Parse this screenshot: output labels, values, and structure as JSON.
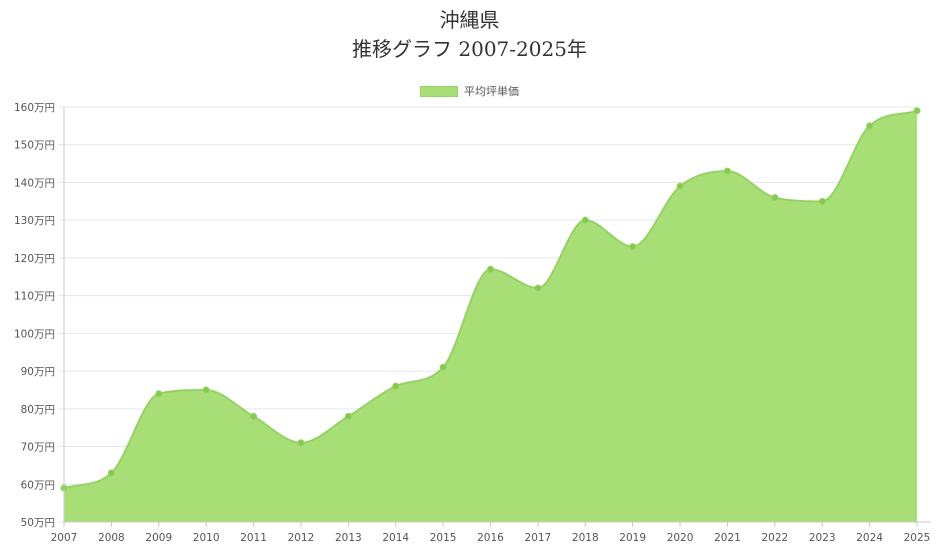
{
  "chart_data": {
    "type": "area",
    "title_lines": [
      "沖縄県",
      "推移グラフ 2007-2025年"
    ],
    "xlabel": "",
    "ylabel": "",
    "categories": [
      "2007",
      "2008",
      "2009",
      "2010",
      "2011",
      "2012",
      "2013",
      "2014",
      "2015",
      "2016",
      "2017",
      "2018",
      "2019",
      "2020",
      "2021",
      "2022",
      "2023",
      "2024",
      "2025"
    ],
    "series": [
      {
        "name": "平均坪単価",
        "values": [
          59,
          63,
          84,
          85,
          78,
          71,
          78,
          86,
          91,
          117,
          112,
          130,
          123,
          139,
          143,
          136,
          135,
          155,
          159
        ]
      }
    ],
    "ylim": [
      50,
      160
    ],
    "y_tick_step": 10,
    "y_tick_suffix": "万円",
    "grid": true,
    "legend_position": "top-center",
    "colors": {
      "fill": "#a7df76",
      "stroke": "#96d166",
      "point": "#86c94d",
      "grid": "#e6e6e6",
      "axis": "#c8c8c8"
    }
  }
}
